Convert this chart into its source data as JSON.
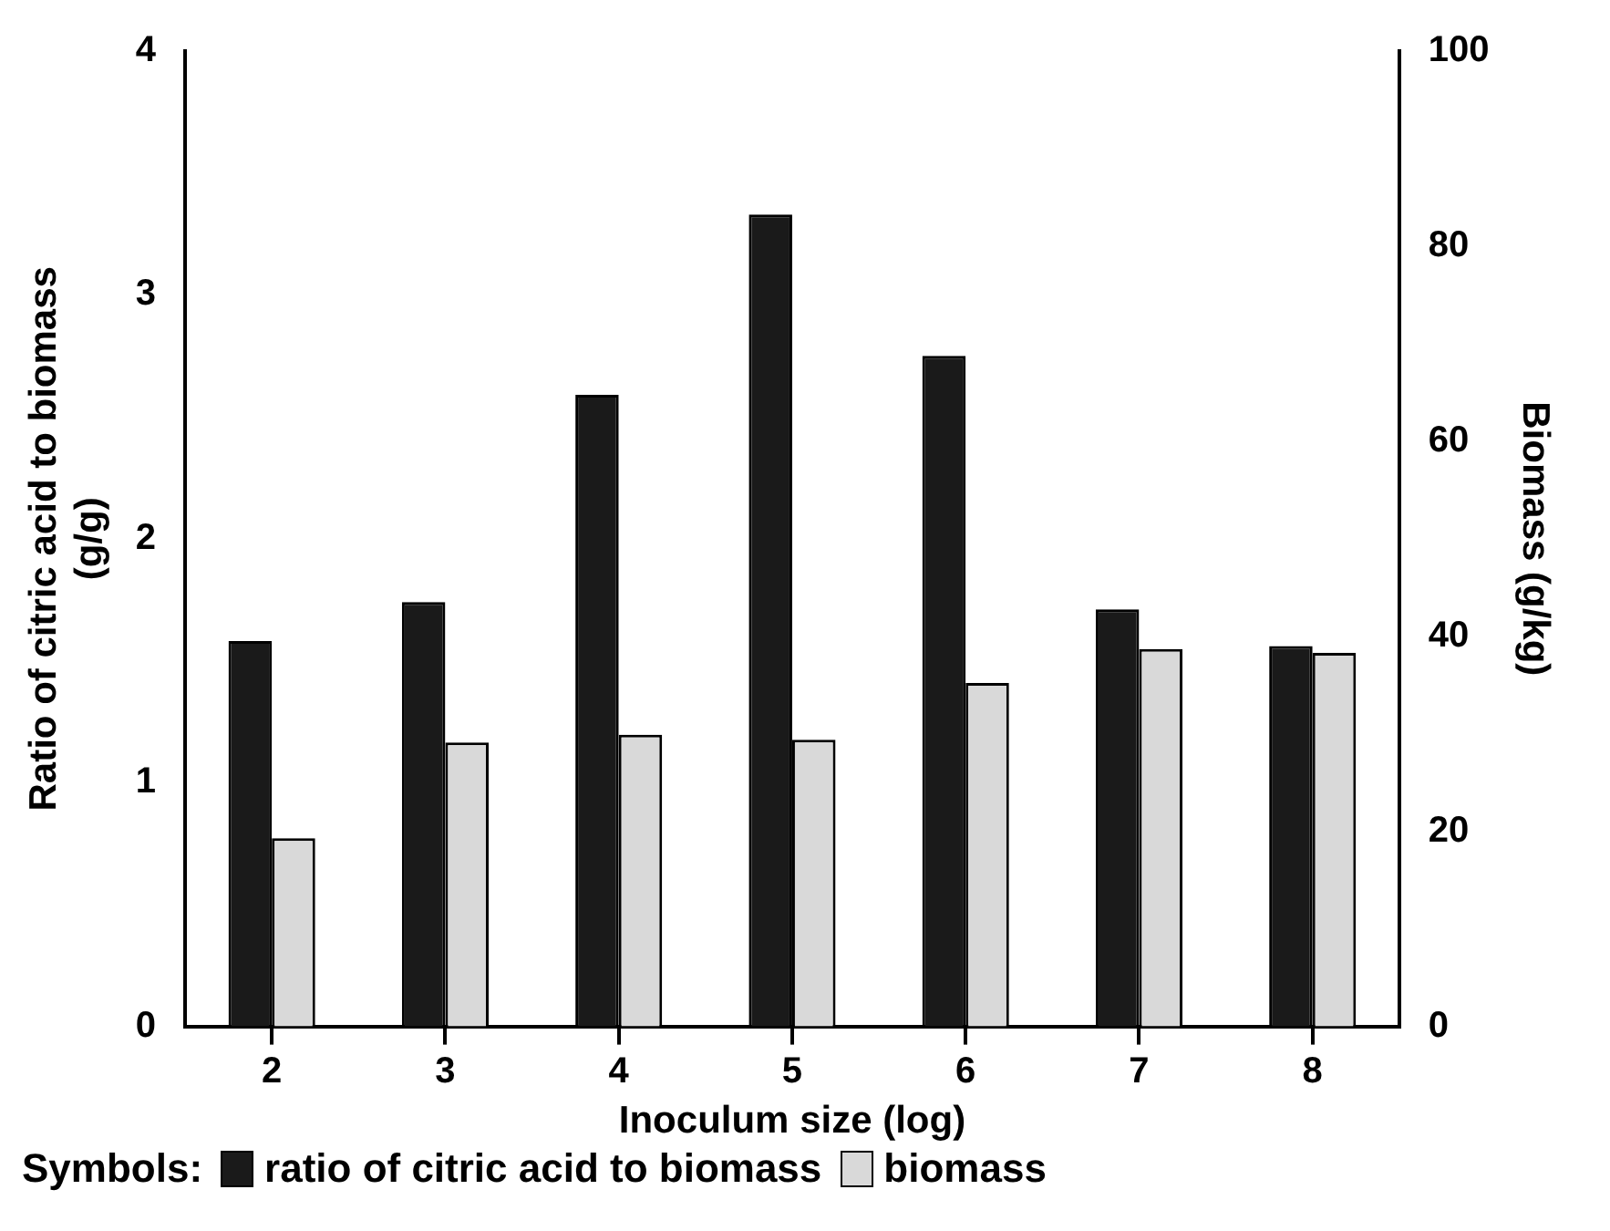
{
  "chart_data": {
    "type": "bar",
    "xlabel": "Inoculum size (log)",
    "ylabel": "Ratio of citric acid to biomass\n(g/g)",
    "y2label": "Biomass (g/kg)",
    "categories": [
      "2",
      "3",
      "4",
      "5",
      "6",
      "7",
      "8"
    ],
    "series": [
      {
        "name": "ratio of citric acid to biomass",
        "color": "#1a1a1a",
        "values": [
          1.58,
          1.74,
          2.59,
          3.33,
          2.75,
          1.71,
          1.56
        ]
      },
      {
        "name": "biomass",
        "color": "#d9d9d9",
        "axis": "y2",
        "values": [
          19.3,
          29.1,
          29.9,
          29.4,
          35.2,
          38.7,
          38.3
        ]
      }
    ],
    "ylim": [
      0,
      4
    ],
    "yticks": [
      0,
      1,
      2,
      3,
      4
    ],
    "y2lim": [
      0,
      100
    ],
    "y2ticks": [
      0,
      20,
      40,
      60,
      80,
      100
    ],
    "grid": false,
    "legend": "bottom",
    "legend_title": "Symbols:"
  }
}
